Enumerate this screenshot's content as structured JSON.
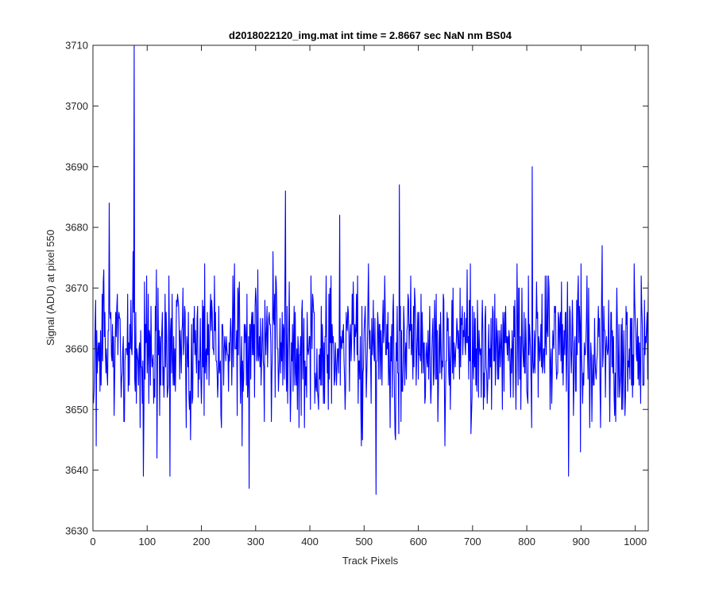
{
  "chart_data": {
    "type": "line",
    "title": "d2018022120_img.mat int time = 2.8667 sec  NaN nm BS04",
    "xlabel": "Track Pixels",
    "ylabel": "Signal (ADU) at pixel 550",
    "xlim": [
      0,
      1024
    ],
    "ylim": [
      3630,
      3710
    ],
    "xticks": [
      0,
      100,
      200,
      300,
      400,
      500,
      600,
      700,
      800,
      900,
      1000
    ],
    "yticks": [
      3630,
      3640,
      3650,
      3660,
      3670,
      3680,
      3690,
      3700,
      3710
    ],
    "xtick_labels": [
      "0",
      "100",
      "200",
      "300",
      "400",
      "500",
      "600",
      "700",
      "800",
      "900",
      "1000"
    ],
    "ytick_labels": [
      "3630",
      "3640",
      "3650",
      "3660",
      "3670",
      "3680",
      "3690",
      "3700",
      "3710"
    ],
    "grid": false,
    "series": [
      {
        "color": "#0000ff",
        "mean": 3660,
        "noise_std": 6,
        "n_points": 1024,
        "x_start": 1,
        "spikes": [
          {
            "x": 30,
            "y": 3684
          },
          {
            "x": 76,
            "y": 3710
          },
          {
            "x": 93,
            "y": 3639
          },
          {
            "x": 142,
            "y": 3639
          },
          {
            "x": 288,
            "y": 3637
          },
          {
            "x": 355,
            "y": 3686
          },
          {
            "x": 455,
            "y": 3682
          },
          {
            "x": 522,
            "y": 3636
          },
          {
            "x": 565,
            "y": 3687
          },
          {
            "x": 810,
            "y": 3690
          },
          {
            "x": 877,
            "y": 3639
          }
        ]
      }
    ]
  }
}
